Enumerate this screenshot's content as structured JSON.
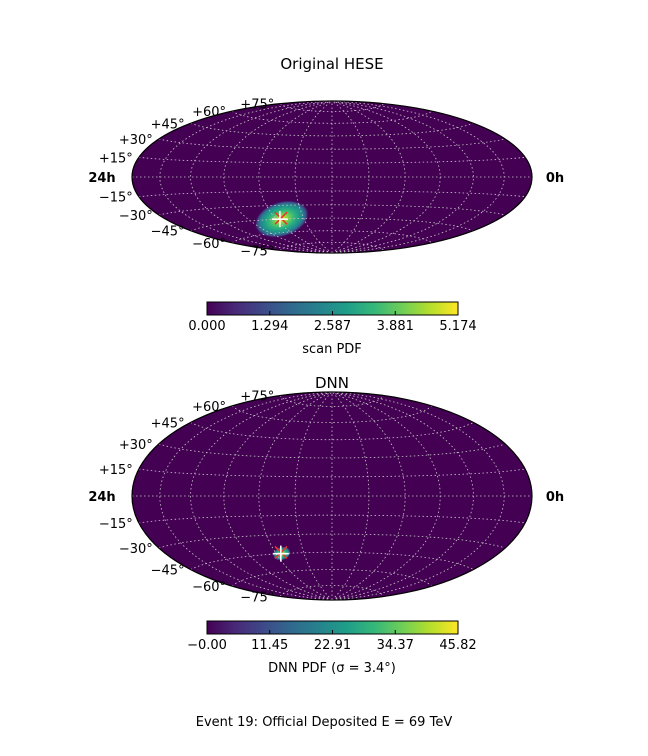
{
  "caption": "Event 19:  Official Deposited E = 69 TeV",
  "chart_data": [
    {
      "type": "heatmap",
      "projection": "hammer-aitoff",
      "title": "Original HESE",
      "lat_labels": [
        "+75°",
        "+60°",
        "+45°",
        "+30°",
        "+15°",
        "−15°",
        "−30°",
        "−45°",
        "−60°",
        "−75°"
      ],
      "lat_values": [
        75,
        60,
        45,
        30,
        15,
        -15,
        -30,
        -45,
        -60,
        -75
      ],
      "ra_left_label": "24h",
      "ra_right_label": "0h",
      "grid": true,
      "colormap": "viridis",
      "colorbar": {
        "label": "scan PDF",
        "min": 0.0,
        "max": 5.174,
        "ticks": [
          0.0,
          1.294,
          2.587,
          3.881,
          5.174
        ],
        "tick_labels": [
          "0.000",
          "1.294",
          "2.587",
          "3.881",
          "5.174"
        ]
      },
      "hotspot": {
        "lon_deg": -54,
        "lat_deg": -45,
        "spread_lon_deg": 14,
        "spread_lat_deg": 9,
        "peak": 5.174
      },
      "markers": [
        {
          "kind": "x",
          "color": "#e8352b",
          "lon_deg": -54,
          "lat_deg": -44
        },
        {
          "kind": "plus",
          "color": "#ffffff",
          "lon_deg": -56,
          "lat_deg": -45
        }
      ]
    },
    {
      "type": "heatmap",
      "projection": "hammer-aitoff",
      "title": "DNN",
      "lat_labels": [
        "+75°",
        "+60°",
        "+45°",
        "+30°",
        "+15°",
        "−15°",
        "−30°",
        "−45°",
        "−60°",
        "−75°"
      ],
      "lat_values": [
        75,
        60,
        45,
        30,
        15,
        -15,
        -30,
        -45,
        -60,
        -75
      ],
      "ra_left_label": "24h",
      "ra_right_label": "0h",
      "grid": true,
      "colormap": "viridis",
      "colorbar": {
        "label": "DNN PDF (σ = 3.4°)",
        "min": 0.0,
        "max": 45.82,
        "ticks": [
          0.0,
          11.45,
          22.91,
          34.37,
          45.82
        ],
        "tick_labels": [
          "−0.00",
          "11.45",
          "22.91",
          "34.37",
          "45.82"
        ]
      },
      "hotspot": {
        "lon_deg": -54,
        "lat_deg": -45,
        "spread_lon_deg": 4.5,
        "spread_lat_deg": 2.5,
        "peak": 45.82
      },
      "markers": [
        {
          "kind": "x",
          "color": "#e8352b",
          "lon_deg": -54,
          "lat_deg": -44
        },
        {
          "kind": "plus",
          "color": "#ffffff",
          "lon_deg": -55,
          "lat_deg": -45
        }
      ]
    }
  ],
  "colors": {
    "viridis_stops": [
      "#440154",
      "#482878",
      "#3e4989",
      "#31688e",
      "#26828e",
      "#1f9e89",
      "#35b779",
      "#6ece58",
      "#b5de2b",
      "#fde725"
    ],
    "background_field": "#440154",
    "grid_line": "#c8c8c8"
  }
}
